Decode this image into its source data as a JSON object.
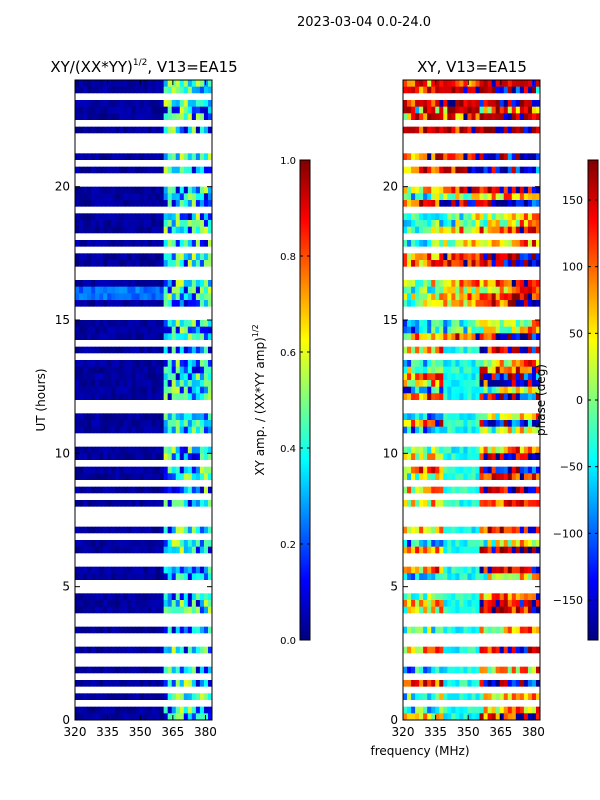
{
  "suptitle": "2023-03-04 0.0-24.0",
  "xlabel": "frequency (MHz)",
  "colors": {
    "jet": [
      "#00007f",
      "#0000ff",
      "#007fff",
      "#00ffff",
      "#7fff7f",
      "#ffff00",
      "#ff7f00",
      "#ff0000",
      "#7f0000"
    ],
    "gap": "#ffffff"
  },
  "chart_data": [
    {
      "type": "heatmap",
      "name": "amp-ratio",
      "title_prefix": "XY/(XX*YY)",
      "title_sup": "1/2",
      "title_suffix": ", V13=EA15",
      "xlim": [
        320,
        383
      ],
      "ylim": [
        0,
        24
      ],
      "xticks": [
        320,
        335,
        350,
        365,
        380
      ],
      "yticks": [
        0,
        5,
        10,
        15,
        20
      ],
      "ylabel": "UT (hours)",
      "colorbar": {
        "label_prefix": "XY amp. / (XX*YY amp)",
        "label_sup": "1/2",
        "range": [
          0.0,
          1.0
        ],
        "ticks": [
          "0.0",
          "0.2",
          "0.4",
          "0.6",
          "0.8",
          "1.0"
        ]
      }
    },
    {
      "type": "heatmap",
      "name": "phase",
      "title": "XY, V13=EA15",
      "xlim": [
        320,
        383
      ],
      "ylim": [
        0,
        24
      ],
      "xticks": [
        320,
        335,
        350,
        365,
        380
      ],
      "yticks": [
        0,
        5,
        10,
        15,
        20
      ],
      "colorbar": {
        "label": "phase (deg)",
        "range": [
          -180,
          180
        ],
        "ticks": [
          "−150",
          "−100",
          "−50",
          "0",
          "50",
          "100",
          "150"
        ]
      }
    }
  ],
  "gap_hours": [
    0.55,
    1.2,
    1.55,
    1.7,
    2.05,
    2.3,
    2.85,
    3.15,
    3.6,
    3.9,
    4.95,
    5.2,
    5.5,
    5.9,
    6.2,
    6.95,
    7.3,
    7.65,
    7.9,
    8.45,
    8.9,
    9.25,
    9.55,
    10.35,
    10.6,
    11.6,
    11.9,
    12.5,
    12.75,
    13.25,
    13.55,
    14.1,
    14.5,
    15.1,
    15.35,
    16.65,
    16.9,
    17.25,
    17.65,
    18.1,
    18.75,
    19.1,
    19.5,
    20.05,
    20.45,
    20.85,
    21.3,
    21.65,
    21.85,
    22.3,
    23.0,
    23.35
  ]
}
